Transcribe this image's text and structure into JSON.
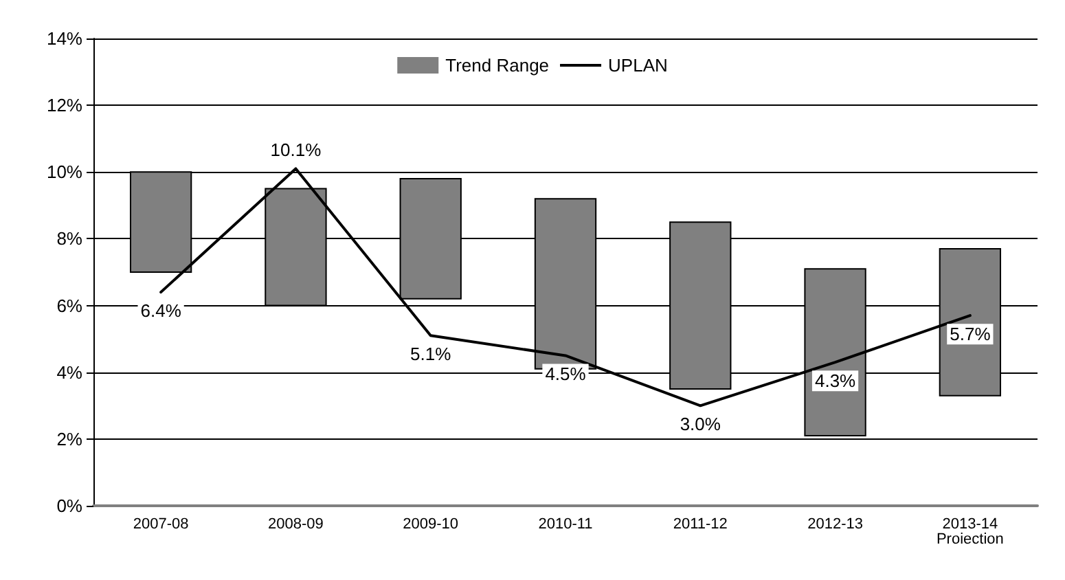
{
  "chart_data": {
    "type": "bar",
    "categories": [
      "2007-08",
      "2008-09",
      "2009-10",
      "2010-11",
      "2011-12",
      "2012-13",
      "2013-14\nProiection"
    ],
    "series": [
      {
        "name": "Trend Range",
        "color": "#808080",
        "base": [
          7.0,
          6.0,
          6.2,
          4.1,
          3.5,
          2.1,
          3.3
        ],
        "values": [
          3.0,
          3.5,
          3.6,
          5.1,
          5.0,
          5.0,
          4.4
        ]
      },
      {
        "name": "UPLAN",
        "type": "line",
        "color": "#000000",
        "values": [
          6.4,
          10.1,
          5.1,
          4.5,
          3.0,
          4.3,
          5.7
        ],
        "value_labels": [
          "6.4%",
          "10.1%",
          "5.1%",
          "4.5%",
          "3.0%",
          "4.3%",
          "5.7%"
        ]
      }
    ],
    "ylim": [
      0,
      14
    ],
    "yticks": [
      {
        "value": 0,
        "label": "0%"
      },
      {
        "value": 2,
        "label": "2%"
      },
      {
        "value": 4,
        "label": "4%"
      },
      {
        "value": 6,
        "label": "6%"
      },
      {
        "value": 8,
        "label": "8%"
      },
      {
        "value": 10,
        "label": "10%"
      },
      {
        "value": 12,
        "label": "12%"
      },
      {
        "value": 14,
        "label": "14%"
      }
    ],
    "grid": "y",
    "legend": "top",
    "marker": "none",
    "line_style": "solid"
  }
}
